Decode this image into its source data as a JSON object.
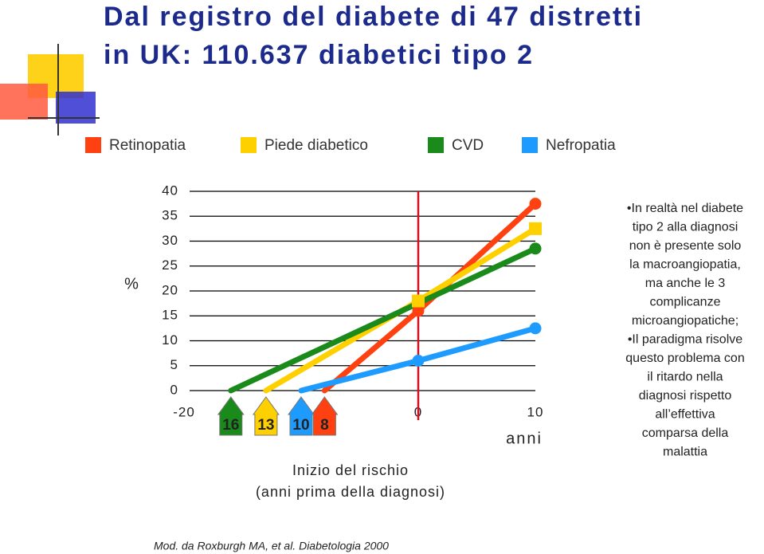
{
  "chart_data": {
    "type": "line",
    "title": [
      "Dal registro del diabete di 47 distretti",
      "in UK: 110.637 diabetici tipo 2"
    ],
    "y_label": "%",
    "x_label": "anni",
    "x_note": [
      "Inizio del rischio",
      "(anni prima della diagnosi)"
    ],
    "xlim": [
      -20,
      10
    ],
    "xticks": [
      -20,
      0,
      10
    ],
    "ylim": [
      0,
      40
    ],
    "yticks": [
      0,
      5,
      10,
      15,
      20,
      25,
      30,
      35,
      40
    ],
    "grid": true,
    "vline": 0,
    "series": [
      {
        "name": "Retinopatia",
        "color": "#ff4010",
        "marker": "circle",
        "onset_label": "8",
        "x": [
          -8,
          0,
          10
        ],
        "values": [
          0,
          16,
          37.5
        ]
      },
      {
        "name": "Piede diabetico",
        "color": "#ffd000",
        "marker": "square",
        "onset_label": "13",
        "x": [
          -13,
          0,
          10
        ],
        "values": [
          0,
          18,
          32.5
        ]
      },
      {
        "name": "CVD",
        "color": "#1a8a1a",
        "marker": "circle",
        "onset_label": "16",
        "x": [
          -16,
          10
        ],
        "values": [
          0,
          28.5
        ]
      },
      {
        "name": "Nefropatia",
        "color": "#1e9bff",
        "marker": "circle",
        "onset_label": "10",
        "x": [
          -10,
          0,
          10
        ],
        "values": [
          0,
          6,
          12.5
        ]
      }
    ],
    "notes": [
      "•In realtà nel diabete",
      "tipo 2 alla diagnosi",
      "non è presente solo",
      "la macroangiopatia,",
      "ma anche le 3",
      "complicanze",
      "microangiopatiche;",
      "•Il paradigma risolve",
      "questo problema con",
      "il ritardo nella",
      "diagnosi rispetto",
      "all’effettiva",
      "comparsa della",
      "malattia"
    ],
    "source": "Mod. da  Roxburgh MA, et al. Diabetologia 2000"
  }
}
